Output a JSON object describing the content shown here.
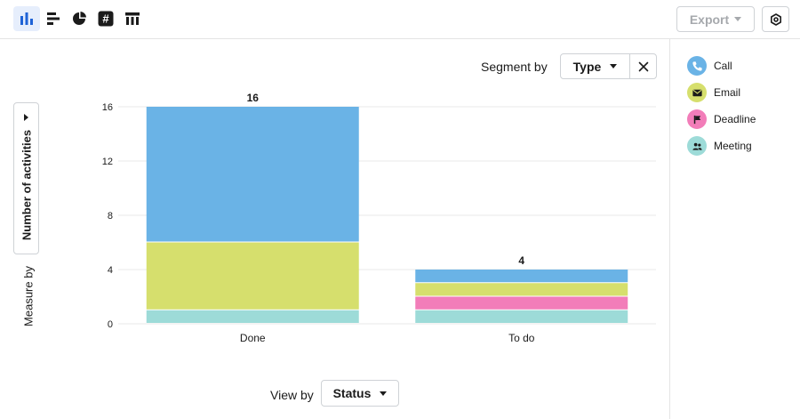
{
  "toolbar": {
    "view_types": [
      {
        "icon": "vertical-bar-chart-icon",
        "active": true
      },
      {
        "icon": "horizontal-bar-chart-icon",
        "active": false
      },
      {
        "icon": "pie-chart-icon",
        "active": false
      },
      {
        "icon": "scorecard-hash-icon",
        "active": false
      },
      {
        "icon": "table-icon",
        "active": false
      }
    ],
    "export_label": "Export",
    "settings_icon": "gear-icon"
  },
  "segment": {
    "label": "Segment by",
    "value": "Type"
  },
  "measure": {
    "label": "Measure by",
    "value": "Number of activities"
  },
  "view_by": {
    "label": "View by",
    "value": "Status"
  },
  "legend": [
    {
      "label": "Call",
      "color": "#6ab3e6",
      "icon": "phone-icon"
    },
    {
      "label": "Email",
      "color": "#d6df6d",
      "icon": "envelope-icon"
    },
    {
      "label": "Deadline",
      "color": "#f27db9",
      "icon": "flag-icon"
    },
    {
      "label": "Meeting",
      "color": "#9ddbd8",
      "icon": "people-icon"
    }
  ],
  "chart_data": {
    "type": "bar",
    "stacked": true,
    "categories": [
      "Done",
      "To do"
    ],
    "series": [
      {
        "name": "Meeting",
        "color": "#9ddbd8",
        "values": [
          1,
          1
        ]
      },
      {
        "name": "Deadline",
        "color": "#f27db9",
        "values": [
          0,
          1
        ]
      },
      {
        "name": "Email",
        "color": "#d6df6d",
        "values": [
          5,
          1
        ]
      },
      {
        "name": "Call",
        "color": "#6ab3e6",
        "values": [
          10,
          1
        ]
      }
    ],
    "totals": [
      16,
      4
    ],
    "yticks": [
      0,
      4,
      8,
      12,
      16
    ],
    "ylim": [
      0,
      16
    ],
    "grid": true,
    "legend_position": "right"
  }
}
